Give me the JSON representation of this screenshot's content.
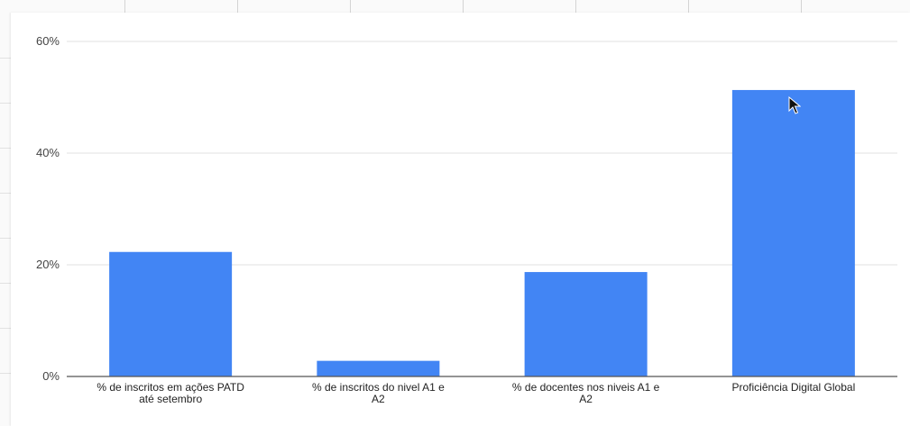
{
  "chart_data": {
    "type": "bar",
    "categories": [
      [
        "% de inscritos em ações PATD",
        "até setembro"
      ],
      [
        "% de inscritos do nivel A1 e",
        "A2"
      ],
      [
        "% de docentes nos niveis A1 e",
        "A2"
      ],
      [
        "Proficiência Digital Global"
      ]
    ],
    "values": [
      22.3,
      2.8,
      18.7,
      51.3
    ],
    "ylim": [
      0,
      60
    ],
    "yticks": [
      0,
      20,
      40,
      60
    ],
    "ytick_labels": [
      "0%",
      "20%",
      "40%",
      "60%"
    ],
    "grid": true,
    "legend": "none",
    "bar_color": "#4285f4",
    "grid_color": "#e0e0e0",
    "axis_color": "#555555"
  }
}
